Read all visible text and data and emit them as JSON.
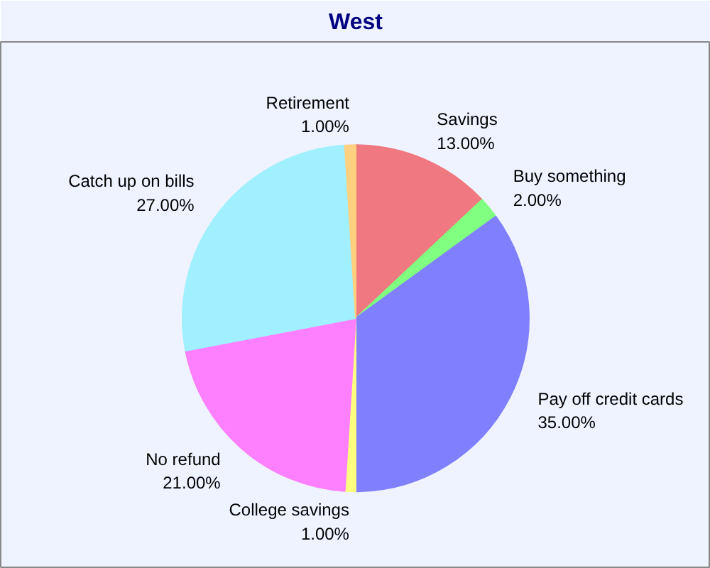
{
  "chart_data": {
    "type": "pie",
    "title": "West",
    "categories": [
      "Savings",
      "Buy something",
      "Pay off credit cards",
      "College savings",
      "No refund",
      "Catch up on bills",
      "Retirement"
    ],
    "values": [
      13,
      2,
      35,
      1,
      21,
      27,
      1
    ],
    "colors": [
      "#f07880",
      "#80ff80",
      "#8080ff",
      "#ffff80",
      "#ff80ff",
      "#a0f0ff",
      "#ffd080"
    ],
    "value_labels": [
      "13.00%",
      "2.00%",
      "35.00%",
      "1.00%",
      "21.00%",
      "27.00%",
      "1.00%"
    ]
  }
}
